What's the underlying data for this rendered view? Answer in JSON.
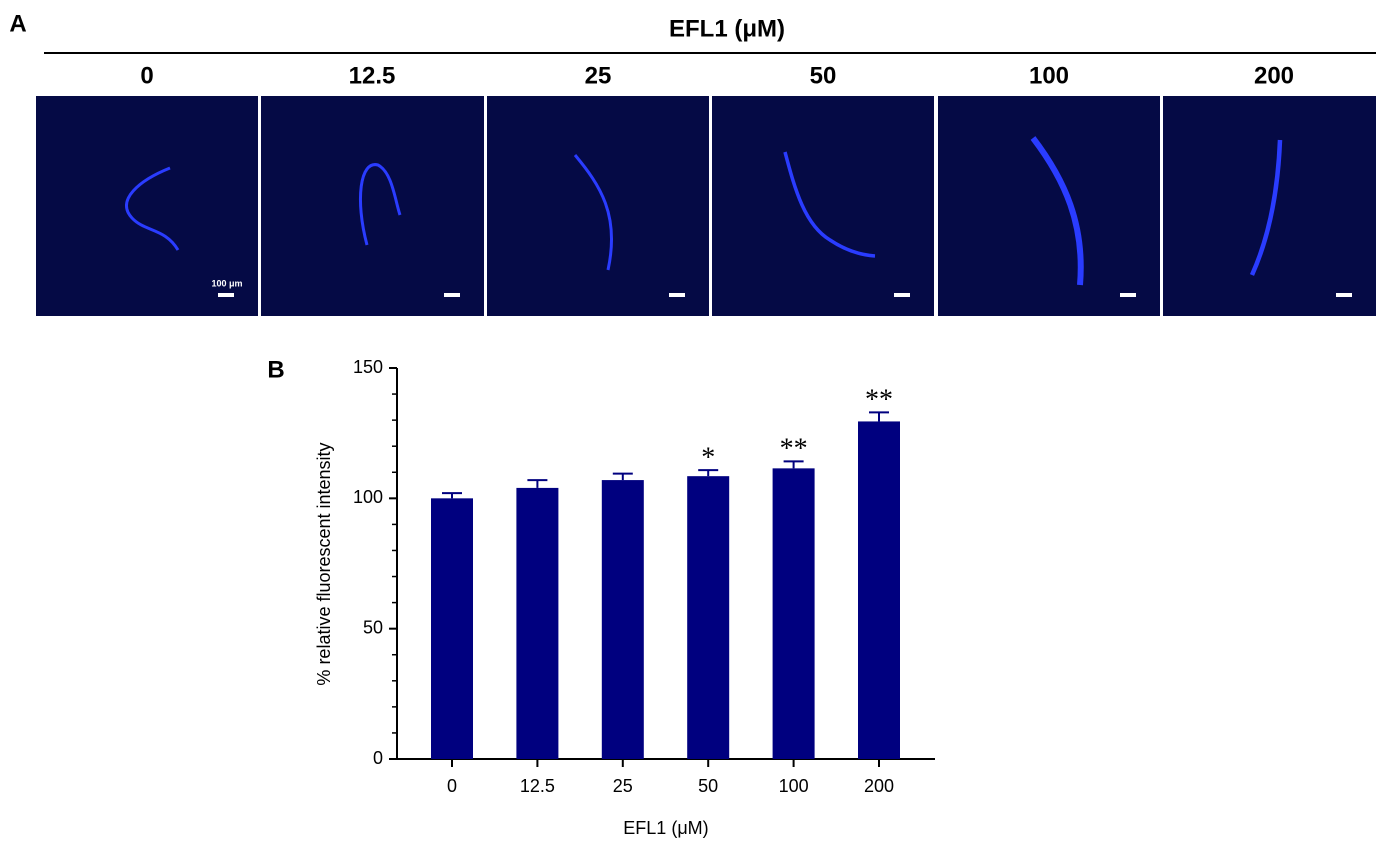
{
  "panel_a": {
    "panel_label": "A",
    "title": "EFL1 (μM)",
    "concentrations": [
      "0",
      "12.5",
      "25",
      "50",
      "100",
      "200"
    ],
    "scale_bar_label": "100 μm"
  },
  "chart_data": {
    "type": "bar",
    "panel_label": "B",
    "categories": [
      "0",
      "12.5",
      "25",
      "50",
      "100",
      "200"
    ],
    "values": [
      100,
      104,
      107,
      108.5,
      111.5,
      129.5
    ],
    "errors": [
      2,
      3,
      2.5,
      2.3,
      2.7,
      3.5
    ],
    "significance": [
      null,
      null,
      null,
      "*",
      "**",
      "**"
    ],
    "color": "#00007f",
    "xlabel": "EFL1 (μM)",
    "ylabel": "% relative fluorescent intensity",
    "ylim": [
      0,
      150
    ],
    "yticks": [
      0,
      50,
      100,
      150
    ],
    "yminorticks": [
      10,
      20,
      30,
      40,
      60,
      70,
      80,
      90,
      110,
      120,
      130,
      140
    ]
  }
}
